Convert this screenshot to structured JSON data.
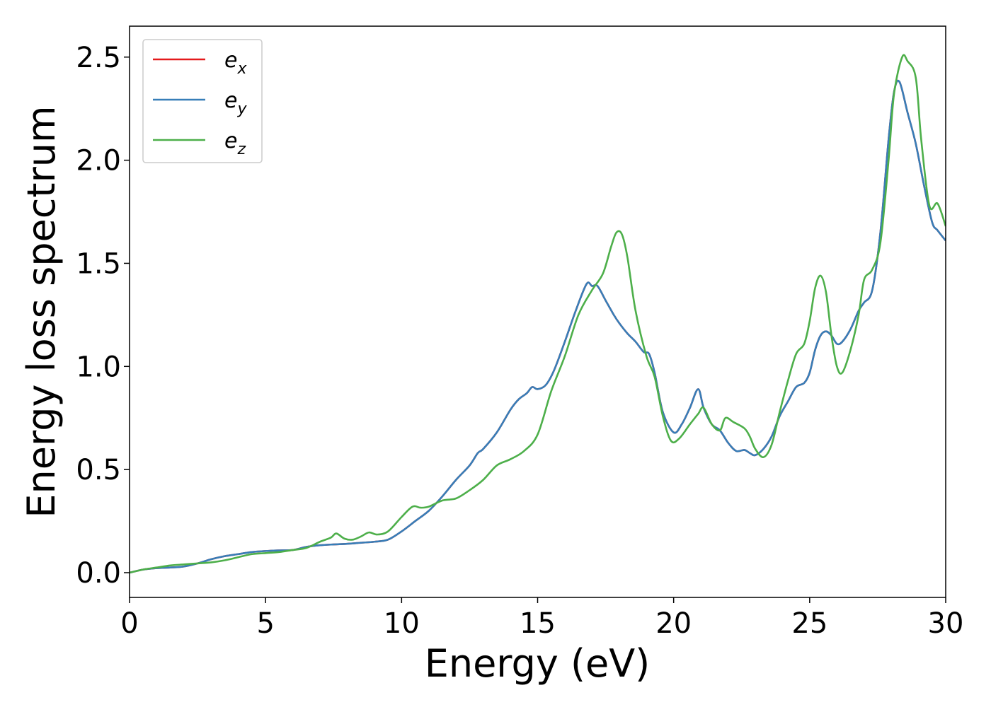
{
  "chart_data": {
    "type": "line",
    "title": "",
    "xlabel": "Energy (eV)",
    "ylabel": "Energy loss spectrum",
    "xlim": [
      0,
      30
    ],
    "ylim": [
      -0.12,
      2.65
    ],
    "xticks": [
      0,
      5,
      10,
      15,
      20,
      25,
      30
    ],
    "xtick_labels": [
      "0",
      "5",
      "10",
      "15",
      "20",
      "25",
      "30"
    ],
    "yticks": [
      0.0,
      0.5,
      1.0,
      1.5,
      2.0,
      2.5
    ],
    "ytick_labels": [
      "0.0",
      "0.5",
      "1.0",
      "1.5",
      "2.0",
      "2.5"
    ],
    "grid": false,
    "legend_position": "top-left",
    "series": [
      {
        "name": "e_x",
        "legend_base": "e",
        "legend_sub": "x",
        "color": "#e41a1c",
        "x": [
          0,
          0.5,
          1,
          1.5,
          2,
          2.5,
          3,
          3.5,
          4,
          4.5,
          5,
          5.5,
          6,
          6.5,
          7,
          7.5,
          8,
          8.5,
          9,
          9.5,
          10,
          10.5,
          11,
          11.5,
          12,
          12.5,
          12.8,
          13,
          13.5,
          14,
          14.3,
          14.6,
          14.8,
          15,
          15.3,
          15.6,
          16,
          16.4,
          16.8,
          17,
          17.2,
          17.5,
          17.8,
          18,
          18.3,
          18.6,
          18.9,
          19.1,
          19.3,
          19.6,
          20,
          20.3,
          20.6,
          20.9,
          21.1,
          21.4,
          21.7,
          22,
          22.3,
          22.6,
          22.8,
          23,
          23.3,
          23.6,
          23.9,
          24.2,
          24.5,
          24.8,
          25,
          25.2,
          25.4,
          25.6,
          25.8,
          26,
          26.2,
          26.5,
          26.8,
          27,
          27.3,
          27.6,
          27.9,
          28.1,
          28.3,
          28.6,
          28.9,
          29.2,
          29.5,
          29.7,
          30
        ],
        "y": [
          0,
          0.015,
          0.022,
          0.025,
          0.03,
          0.045,
          0.065,
          0.08,
          0.09,
          0.1,
          0.105,
          0.108,
          0.11,
          0.125,
          0.133,
          0.137,
          0.14,
          0.145,
          0.15,
          0.16,
          0.2,
          0.25,
          0.3,
          0.37,
          0.45,
          0.52,
          0.58,
          0.6,
          0.68,
          0.79,
          0.84,
          0.87,
          0.9,
          0.89,
          0.91,
          0.98,
          1.12,
          1.27,
          1.4,
          1.39,
          1.39,
          1.32,
          1.25,
          1.21,
          1.16,
          1.12,
          1.07,
          1.06,
          0.97,
          0.78,
          0.68,
          0.72,
          0.8,
          0.89,
          0.8,
          0.72,
          0.69,
          0.63,
          0.59,
          0.595,
          0.58,
          0.57,
          0.6,
          0.66,
          0.76,
          0.83,
          0.9,
          0.92,
          0.97,
          1.08,
          1.15,
          1.17,
          1.15,
          1.11,
          1.12,
          1.18,
          1.27,
          1.31,
          1.37,
          1.65,
          2.1,
          2.33,
          2.38,
          2.23,
          2.08,
          1.88,
          1.7,
          1.66,
          1.61
        ]
      },
      {
        "name": "e_y",
        "legend_base": "e",
        "legend_sub": "y",
        "color": "#377eb8",
        "x": [
          0,
          0.5,
          1,
          1.5,
          2,
          2.5,
          3,
          3.5,
          4,
          4.5,
          5,
          5.5,
          6,
          6.5,
          7,
          7.5,
          8,
          8.5,
          9,
          9.5,
          10,
          10.5,
          11,
          11.5,
          12,
          12.5,
          12.8,
          13,
          13.5,
          14,
          14.3,
          14.6,
          14.8,
          15,
          15.3,
          15.6,
          16,
          16.4,
          16.8,
          17,
          17.2,
          17.5,
          17.8,
          18,
          18.3,
          18.6,
          18.9,
          19.1,
          19.3,
          19.6,
          20,
          20.3,
          20.6,
          20.9,
          21.1,
          21.4,
          21.7,
          22,
          22.3,
          22.6,
          22.8,
          23,
          23.3,
          23.6,
          23.9,
          24.2,
          24.5,
          24.8,
          25,
          25.2,
          25.4,
          25.6,
          25.8,
          26,
          26.2,
          26.5,
          26.8,
          27,
          27.3,
          27.6,
          27.9,
          28.1,
          28.3,
          28.6,
          28.9,
          29.2,
          29.5,
          29.7,
          30
        ],
        "y": [
          0,
          0.015,
          0.022,
          0.025,
          0.03,
          0.045,
          0.065,
          0.08,
          0.09,
          0.1,
          0.105,
          0.108,
          0.11,
          0.125,
          0.133,
          0.137,
          0.14,
          0.145,
          0.15,
          0.16,
          0.2,
          0.25,
          0.3,
          0.37,
          0.45,
          0.52,
          0.58,
          0.6,
          0.68,
          0.79,
          0.84,
          0.87,
          0.9,
          0.89,
          0.91,
          0.98,
          1.12,
          1.27,
          1.4,
          1.39,
          1.39,
          1.32,
          1.25,
          1.21,
          1.16,
          1.12,
          1.07,
          1.06,
          0.97,
          0.78,
          0.68,
          0.72,
          0.8,
          0.89,
          0.8,
          0.72,
          0.69,
          0.63,
          0.59,
          0.595,
          0.58,
          0.57,
          0.6,
          0.66,
          0.76,
          0.83,
          0.9,
          0.92,
          0.97,
          1.08,
          1.15,
          1.17,
          1.15,
          1.11,
          1.12,
          1.18,
          1.27,
          1.31,
          1.37,
          1.65,
          2.1,
          2.33,
          2.38,
          2.23,
          2.08,
          1.88,
          1.7,
          1.66,
          1.61
        ]
      },
      {
        "name": "e_z",
        "legend_base": "e",
        "legend_sub": "z",
        "color": "#4daf4a",
        "x": [
          0,
          0.5,
          1,
          1.5,
          2,
          2.5,
          3,
          3.5,
          4,
          4.5,
          5,
          5.5,
          6,
          6.5,
          7,
          7.4,
          7.6,
          7.9,
          8.2,
          8.5,
          8.8,
          9.1,
          9.5,
          10,
          10.4,
          10.7,
          11,
          11.5,
          12,
          12.5,
          13,
          13.5,
          14,
          14.5,
          15,
          15.5,
          16,
          16.5,
          17,
          17.4,
          17.7,
          17.9,
          18.1,
          18.3,
          18.6,
          19,
          19.3,
          19.6,
          19.9,
          20.2,
          20.6,
          20.9,
          21.1,
          21.4,
          21.7,
          21.9,
          22.2,
          22.6,
          22.8,
          23,
          23.3,
          23.6,
          23.9,
          24.2,
          24.5,
          24.8,
          25,
          25.2,
          25.4,
          25.6,
          25.8,
          26,
          26.2,
          26.5,
          26.8,
          27,
          27.3,
          27.6,
          27.9,
          28.1,
          28.4,
          28.6,
          28.9,
          29.1,
          29.4,
          29.7,
          30
        ],
        "y": [
          0,
          0.015,
          0.025,
          0.035,
          0.04,
          0.045,
          0.05,
          0.06,
          0.075,
          0.09,
          0.095,
          0.1,
          0.11,
          0.12,
          0.15,
          0.17,
          0.19,
          0.165,
          0.16,
          0.175,
          0.195,
          0.185,
          0.2,
          0.27,
          0.32,
          0.315,
          0.32,
          0.35,
          0.36,
          0.4,
          0.45,
          0.52,
          0.55,
          0.59,
          0.67,
          0.88,
          1.05,
          1.25,
          1.37,
          1.45,
          1.58,
          1.65,
          1.64,
          1.53,
          1.27,
          1.05,
          0.95,
          0.76,
          0.64,
          0.65,
          0.72,
          0.77,
          0.8,
          0.72,
          0.69,
          0.75,
          0.73,
          0.7,
          0.66,
          0.6,
          0.56,
          0.62,
          0.78,
          0.93,
          1.06,
          1.11,
          1.22,
          1.38,
          1.44,
          1.36,
          1.15,
          1.0,
          0.97,
          1.08,
          1.25,
          1.42,
          1.47,
          1.6,
          2.0,
          2.32,
          2.5,
          2.48,
          2.4,
          2.1,
          1.78,
          1.79,
          1.68
        ]
      }
    ]
  }
}
